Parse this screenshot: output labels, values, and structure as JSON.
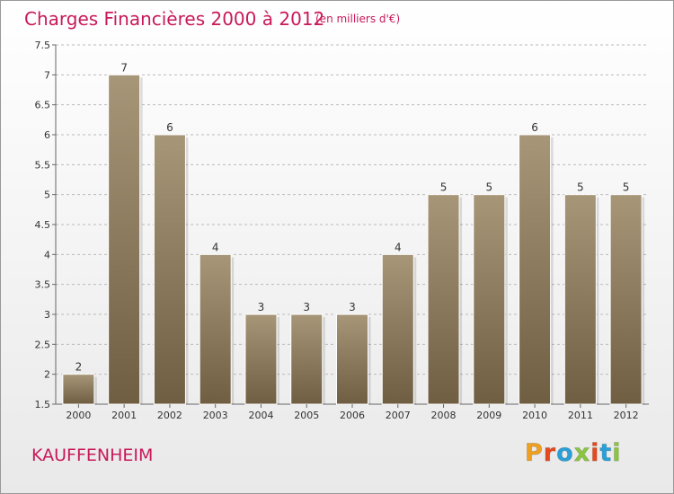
{
  "header": {
    "title": "Charges Financières 2000 à 2012",
    "subtitle": "(en milliers d'€)"
  },
  "footer": {
    "commune": "KAUFFENHEIM",
    "logo_text": "Proxiti",
    "logo_colors": [
      "#f0a020",
      "#e8491d",
      "#2aa0d8",
      "#8bc63f",
      "#e8491d",
      "#2aa0d8",
      "#8bc63f"
    ]
  },
  "colors": {
    "title": "#c8195a",
    "bar_light": "#a79678",
    "bar_dark": "#6f5e42",
    "grid": "#bbbbbb"
  },
  "chart_data": {
    "type": "bar",
    "categories": [
      "2000",
      "2001",
      "2002",
      "2003",
      "2004",
      "2005",
      "2006",
      "2007",
      "2008",
      "2009",
      "2010",
      "2011",
      "2012"
    ],
    "values": [
      2,
      7,
      6,
      4,
      3,
      3,
      3,
      4,
      5,
      5,
      6,
      5,
      5
    ],
    "ylim": [
      1.5,
      7.5
    ],
    "yticks": [
      "1.5",
      "2",
      "2.5",
      "3",
      "3.5",
      "4",
      "4.5",
      "5",
      "5.5",
      "6",
      "6.5",
      "7",
      "7.5"
    ],
    "grid": true,
    "data_labels": true,
    "xlabel": "",
    "ylabel": ""
  }
}
